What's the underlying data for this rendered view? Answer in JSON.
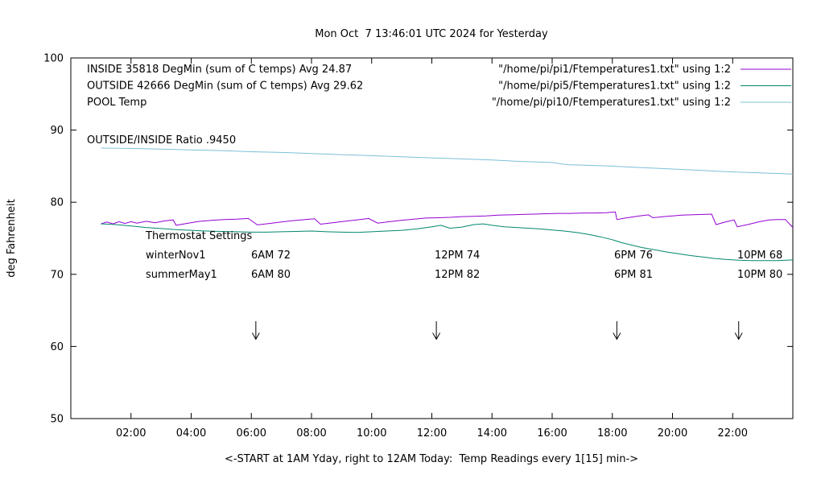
{
  "chart_data": {
    "type": "line",
    "title": "Mon Oct  7 13:46:01 UTC 2024 for Yesterday",
    "xlabel": "<-START at 1AM Yday, right to 12AM Today:  Temp Readings every 1[15] min->",
    "ylabel": "deg Fahrenheit",
    "xlim": [
      0,
      24
    ],
    "ylim": [
      50,
      100
    ],
    "grid": false,
    "xticks": [
      {
        "t": 2,
        "label": "02:00"
      },
      {
        "t": 4,
        "label": "04:00"
      },
      {
        "t": 6,
        "label": "06:00"
      },
      {
        "t": 8,
        "label": "08:00"
      },
      {
        "t": 10,
        "label": "10:00"
      },
      {
        "t": 12,
        "label": "12:00"
      },
      {
        "t": 14,
        "label": "14:00"
      },
      {
        "t": 16,
        "label": "16:00"
      },
      {
        "t": 18,
        "label": "18:00"
      },
      {
        "t": 20,
        "label": "20:00"
      },
      {
        "t": 22,
        "label": "22:00"
      }
    ],
    "yticks": [
      {
        "v": 50,
        "label": "50"
      },
      {
        "v": 60,
        "label": "60"
      },
      {
        "v": 70,
        "label": "70"
      },
      {
        "v": 80,
        "label": "80"
      },
      {
        "v": 90,
        "label": "90"
      },
      {
        "v": 100,
        "label": "100"
      }
    ],
    "legend": [
      {
        "label": "INSIDE 35818 DegMin (sum of C temps) Avg 24.87",
        "file": "\"/home/pi/pi1/Ftemperatures1.txt\" using 1:2",
        "color": "#9400d3"
      },
      {
        "label": "OUTSIDE 42666 DegMin (sum of C temps) Avg 29.62",
        "file": "\"/home/pi/pi5/Ftemperatures1.txt\" using 1:2",
        "color": "#00876c"
      },
      {
        "label": "POOL Temp",
        "file": "\"/home/pi/pi10/Ftemperatures1.txt\" using 1:2",
        "color": "#7cc0d8"
      }
    ],
    "series": [
      {
        "name": "INSIDE",
        "color": "#9400d3",
        "points": [
          [
            1.0,
            77.0
          ],
          [
            1.2,
            77.25
          ],
          [
            1.4,
            77.0
          ],
          [
            1.6,
            77.3
          ],
          [
            1.8,
            77.05
          ],
          [
            2.0,
            77.3
          ],
          [
            2.2,
            77.1
          ],
          [
            2.5,
            77.35
          ],
          [
            2.8,
            77.15
          ],
          [
            3.1,
            77.4
          ],
          [
            3.4,
            77.55
          ],
          [
            3.5,
            76.8
          ],
          [
            3.9,
            77.1
          ],
          [
            4.3,
            77.35
          ],
          [
            4.7,
            77.5
          ],
          [
            5.1,
            77.6
          ],
          [
            5.5,
            77.65
          ],
          [
            5.9,
            77.75
          ],
          [
            6.2,
            76.85
          ],
          [
            6.6,
            77.05
          ],
          [
            7.0,
            77.25
          ],
          [
            7.4,
            77.45
          ],
          [
            7.8,
            77.6
          ],
          [
            8.1,
            77.7
          ],
          [
            8.3,
            76.95
          ],
          [
            8.7,
            77.15
          ],
          [
            9.1,
            77.35
          ],
          [
            9.5,
            77.55
          ],
          [
            9.9,
            77.75
          ],
          [
            10.2,
            77.1
          ],
          [
            10.6,
            77.3
          ],
          [
            11.0,
            77.5
          ],
          [
            11.4,
            77.65
          ],
          [
            11.8,
            77.8
          ],
          [
            12.2,
            77.85
          ],
          [
            12.6,
            77.9
          ],
          [
            13.0,
            78.0
          ],
          [
            13.4,
            78.05
          ],
          [
            13.8,
            78.1
          ],
          [
            14.2,
            78.2
          ],
          [
            14.6,
            78.25
          ],
          [
            15.0,
            78.3
          ],
          [
            15.4,
            78.35
          ],
          [
            15.8,
            78.4
          ],
          [
            16.2,
            78.45
          ],
          [
            16.6,
            78.45
          ],
          [
            17.0,
            78.5
          ],
          [
            17.4,
            78.5
          ],
          [
            17.8,
            78.55
          ],
          [
            18.1,
            78.65
          ],
          [
            18.15,
            77.6
          ],
          [
            18.5,
            77.85
          ],
          [
            18.9,
            78.1
          ],
          [
            19.2,
            78.25
          ],
          [
            19.35,
            77.85
          ],
          [
            19.7,
            78.0
          ],
          [
            20.0,
            78.1
          ],
          [
            20.3,
            78.2
          ],
          [
            20.6,
            78.25
          ],
          [
            21.0,
            78.3
          ],
          [
            21.3,
            78.35
          ],
          [
            21.45,
            76.9
          ],
          [
            21.8,
            77.3
          ],
          [
            22.05,
            77.55
          ],
          [
            22.15,
            76.6
          ],
          [
            22.5,
            76.9
          ],
          [
            22.9,
            77.3
          ],
          [
            23.2,
            77.55
          ],
          [
            23.5,
            77.6
          ],
          [
            23.75,
            77.6
          ],
          [
            24.0,
            76.5
          ]
        ]
      },
      {
        "name": "OUTSIDE",
        "color": "#00876c",
        "points": [
          [
            1.0,
            77.0
          ],
          [
            1.5,
            76.9
          ],
          [
            2.0,
            76.7
          ],
          [
            2.5,
            76.5
          ],
          [
            3.0,
            76.35
          ],
          [
            3.5,
            76.2
          ],
          [
            4.0,
            76.1
          ],
          [
            4.5,
            76.0
          ],
          [
            5.0,
            75.95
          ],
          [
            5.5,
            75.9
          ],
          [
            6.0,
            75.85
          ],
          [
            6.5,
            75.85
          ],
          [
            7.0,
            75.9
          ],
          [
            7.5,
            75.95
          ],
          [
            8.0,
            76.0
          ],
          [
            8.5,
            75.9
          ],
          [
            9.0,
            75.85
          ],
          [
            9.5,
            75.8
          ],
          [
            10.0,
            75.9
          ],
          [
            10.5,
            76.0
          ],
          [
            11.0,
            76.1
          ],
          [
            11.5,
            76.3
          ],
          [
            12.0,
            76.6
          ],
          [
            12.3,
            76.8
          ],
          [
            12.6,
            76.4
          ],
          [
            13.0,
            76.55
          ],
          [
            13.4,
            76.9
          ],
          [
            13.7,
            77.0
          ],
          [
            14.0,
            76.8
          ],
          [
            14.4,
            76.6
          ],
          [
            14.8,
            76.5
          ],
          [
            15.2,
            76.4
          ],
          [
            15.6,
            76.3
          ],
          [
            16.0,
            76.15
          ],
          [
            16.4,
            76.0
          ],
          [
            16.8,
            75.8
          ],
          [
            17.2,
            75.55
          ],
          [
            17.6,
            75.2
          ],
          [
            18.0,
            74.8
          ],
          [
            18.3,
            74.4
          ],
          [
            18.6,
            74.1
          ],
          [
            19.0,
            73.7
          ],
          [
            19.4,
            73.4
          ],
          [
            19.8,
            73.1
          ],
          [
            20.2,
            72.85
          ],
          [
            20.6,
            72.6
          ],
          [
            21.0,
            72.4
          ],
          [
            21.4,
            72.2
          ],
          [
            21.8,
            72.05
          ],
          [
            22.2,
            71.95
          ],
          [
            22.6,
            71.9
          ],
          [
            23.0,
            71.9
          ],
          [
            23.5,
            71.9
          ],
          [
            24.0,
            72.0
          ]
        ]
      },
      {
        "name": "POOL",
        "color": "#7cc0d8",
        "points": [
          [
            1.0,
            87.5
          ],
          [
            2.0,
            87.45
          ],
          [
            3.0,
            87.35
          ],
          [
            4.0,
            87.25
          ],
          [
            5.0,
            87.15
          ],
          [
            6.0,
            87.0
          ],
          [
            7.0,
            86.9
          ],
          [
            8.0,
            86.75
          ],
          [
            9.0,
            86.6
          ],
          [
            10.0,
            86.45
          ],
          [
            11.0,
            86.3
          ],
          [
            12.0,
            86.15
          ],
          [
            13.0,
            86.0
          ],
          [
            14.0,
            85.85
          ],
          [
            15.0,
            85.65
          ],
          [
            16.0,
            85.5
          ],
          [
            16.5,
            85.2
          ],
          [
            17.0,
            85.15
          ],
          [
            18.0,
            85.0
          ],
          [
            19.0,
            84.8
          ],
          [
            20.0,
            84.6
          ],
          [
            21.0,
            84.4
          ],
          [
            22.0,
            84.2
          ],
          [
            23.0,
            84.05
          ],
          [
            24.0,
            83.9
          ]
        ]
      }
    ],
    "annotations": {
      "ratio": "OUTSIDE/INSIDE Ratio .9450",
      "thermostat_title": "Thermostat Settings",
      "thermostat_rows": [
        {
          "label": "winterNov1",
          "values": [
            "6AM 72",
            "12PM 74",
            "6PM 76",
            "10PM 68"
          ]
        },
        {
          "label": "summerMay1",
          "values": [
            "6AM 80",
            "12PM 82",
            "6PM 81",
            "10PM 80"
          ]
        }
      ],
      "arrow_times": [
        6.15,
        12.15,
        18.15,
        22.2
      ]
    }
  }
}
